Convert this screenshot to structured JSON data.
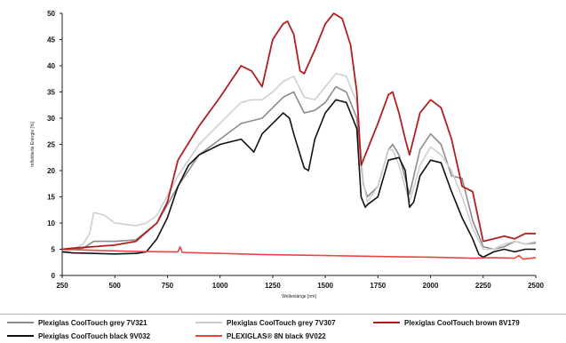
{
  "chart_data": {
    "type": "line",
    "title": "",
    "xlabel": "Wellenlänge [nm]",
    "ylabel": "reflektierte Energie [%]",
    "xlim": [
      250,
      2500
    ],
    "ylim": [
      0,
      50
    ],
    "xticks": [
      "250",
      "500",
      "750",
      "1000",
      "1250",
      "1500",
      "1750",
      "2000",
      "2250",
      "2500"
    ],
    "yticks": [
      "0",
      "5",
      "10",
      "15",
      "20",
      "25",
      "30",
      "35",
      "40",
      "45",
      "50"
    ],
    "grid": false,
    "legend_position": "bottom",
    "series": [
      {
        "name": "Plexiglas CoolTouch grey 7V321",
        "color": "#8c8c8c",
        "x": [
          250,
          300,
          350,
          400,
          500,
          600,
          700,
          800,
          900,
          1000,
          1100,
          1150,
          1200,
          1250,
          1300,
          1350,
          1400,
          1450,
          1500,
          1550,
          1600,
          1650,
          1680,
          1700,
          1750,
          1800,
          1820,
          1850,
          1900,
          1950,
          2000,
          2050,
          2100,
          2150,
          2200,
          2250,
          2300,
          2350,
          2400,
          2450,
          2500
        ],
        "y": [
          4.5,
          5,
          5.2,
          6.5,
          6.5,
          6.8,
          10,
          17,
          23,
          26,
          29,
          29.5,
          30,
          32,
          34,
          35,
          31,
          31.5,
          33,
          36,
          35,
          30,
          17.5,
          15,
          17,
          24,
          25,
          23,
          15.5,
          24,
          27,
          25,
          19,
          18.5,
          10.5,
          5.5,
          5,
          5.5,
          6.5,
          6,
          6.2
        ]
      },
      {
        "name": "Plexiglas CoolTouch grey 7V307",
        "color": "#cfcfcf",
        "x": [
          250,
          300,
          350,
          380,
          400,
          450,
          500,
          600,
          650,
          700,
          800,
          900,
          1000,
          1100,
          1150,
          1200,
          1250,
          1300,
          1350,
          1400,
          1450,
          1500,
          1550,
          1600,
          1650,
          1680,
          1700,
          1750,
          1800,
          1820,
          1850,
          1900,
          1950,
          2000,
          2050,
          2100,
          2150,
          2200,
          2250,
          2300,
          2350,
          2400,
          2450,
          2500
        ],
        "y": [
          4.5,
          5,
          6,
          8,
          12,
          11.5,
          10,
          9.5,
          10,
          11.5,
          19,
          25,
          29,
          33,
          33.5,
          33.5,
          35,
          37,
          38,
          34,
          33.5,
          36,
          38.5,
          38,
          33,
          18,
          14,
          17,
          24,
          24,
          21,
          14,
          21,
          24.5,
          23,
          20,
          15,
          9,
          5,
          5,
          6,
          6.5,
          6,
          6.5
        ]
      },
      {
        "name": "Plexiglas CoolTouch brown 8V179",
        "color": "#b21e1e",
        "x": [
          250,
          300,
          400,
          500,
          600,
          700,
          750,
          800,
          900,
          1000,
          1050,
          1100,
          1150,
          1200,
          1250,
          1300,
          1320,
          1350,
          1380,
          1400,
          1450,
          1500,
          1540,
          1580,
          1620,
          1650,
          1670,
          1700,
          1750,
          1800,
          1820,
          1850,
          1880,
          1900,
          1950,
          2000,
          2050,
          2100,
          2150,
          2200,
          2250,
          2300,
          2350,
          2400,
          2450,
          2500
        ],
        "y": [
          5,
          5.2,
          5.5,
          5.8,
          6.5,
          10,
          14,
          22,
          28.5,
          34,
          37,
          40,
          39,
          36,
          45,
          48,
          48.5,
          46,
          39,
          38.5,
          43,
          48,
          50,
          49,
          44,
          35,
          21,
          24,
          29,
          34.5,
          35,
          31,
          26,
          23,
          31,
          33.5,
          32,
          26,
          17,
          16,
          6.5,
          7,
          7.5,
          7,
          8,
          8
        ]
      },
      {
        "name": "Plexiglas CoolTouch black 9V032",
        "color": "#111111",
        "x": [
          250,
          300,
          400,
          500,
          600,
          650,
          700,
          750,
          800,
          850,
          900,
          1000,
          1100,
          1150,
          1160,
          1200,
          1250,
          1300,
          1330,
          1350,
          1400,
          1420,
          1450,
          1500,
          1550,
          1600,
          1650,
          1670,
          1690,
          1700,
          1750,
          1800,
          1850,
          1880,
          1900,
          1920,
          1950,
          2000,
          2050,
          2100,
          2150,
          2200,
          2230,
          2250,
          2300,
          2350,
          2400,
          2450,
          2500
        ],
        "y": [
          4.5,
          4.3,
          4.2,
          4.1,
          4.2,
          4.5,
          7,
          11,
          17,
          21,
          23,
          25,
          26,
          24,
          23.5,
          27,
          29,
          31,
          30,
          27,
          20.5,
          20,
          26,
          31,
          33.5,
          33,
          28,
          15,
          13,
          13.5,
          15,
          22,
          22.5,
          20,
          13,
          14,
          19,
          22,
          21.5,
          16,
          11,
          7,
          4,
          3.5,
          4.5,
          5,
          4.5,
          5,
          5
        ]
      },
      {
        "name": "PLEXIGLAS® 8N black 9V022",
        "color": "#ee4444",
        "x": [
          250,
          400,
          600,
          750,
          800,
          810,
          820,
          900,
          1000,
          1200,
          1500,
          1800,
          2000,
          2200,
          2300,
          2400,
          2420,
          2440,
          2500
        ],
        "y": [
          5,
          4.8,
          4.6,
          4.5,
          4.5,
          5.5,
          4.4,
          4.3,
          4.2,
          4,
          3.8,
          3.6,
          3.5,
          3.3,
          3.4,
          3.3,
          3.8,
          3.1,
          3.4
        ]
      }
    ]
  }
}
